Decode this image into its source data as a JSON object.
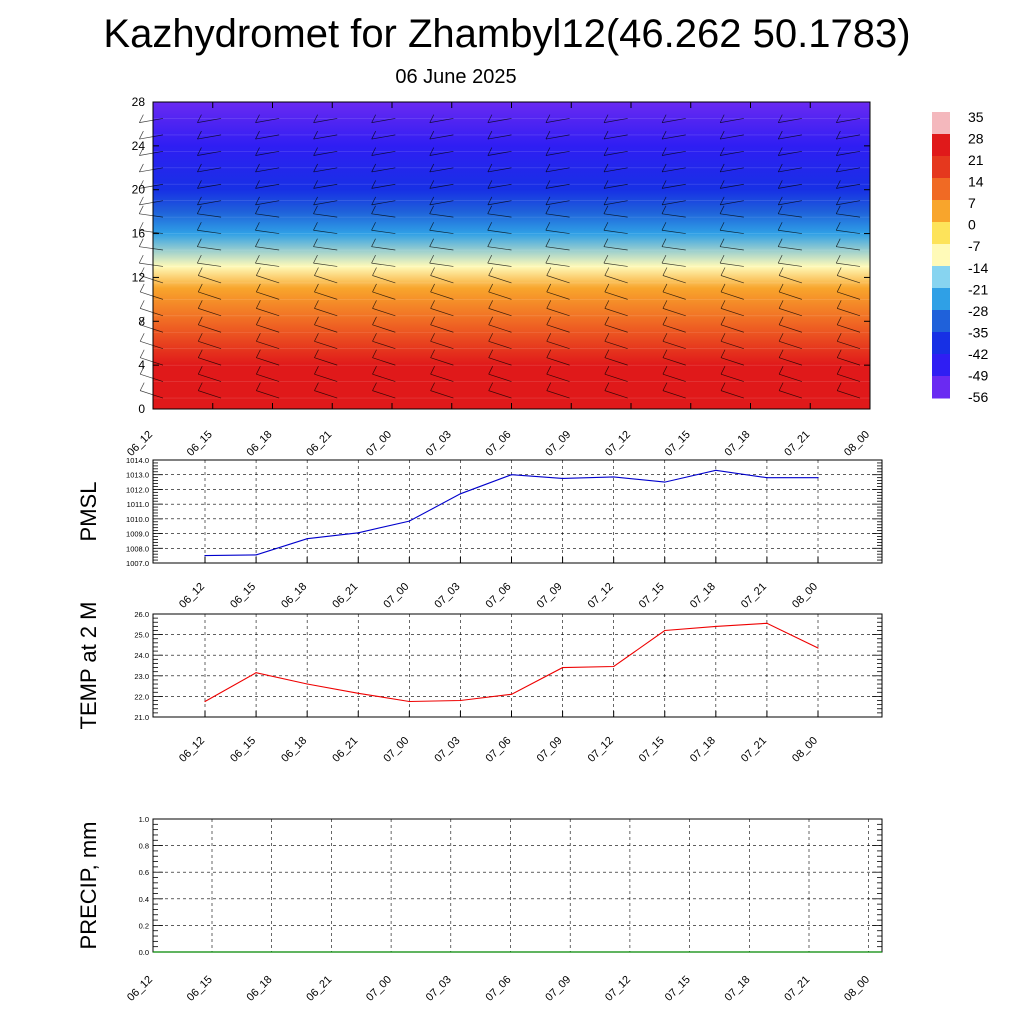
{
  "header": {
    "title": "Kazhydromet for Zhambyl12(46.262 50.1783)",
    "subtitle": "06 June 2025"
  },
  "chart_data": [
    {
      "type": "heatmap",
      "title": "",
      "ylim": [
        0,
        28
      ],
      "y_ticks": [
        "0",
        "4",
        "8",
        "12",
        "16",
        "20",
        "24",
        "28"
      ],
      "x_ticks": [
        "06_12",
        "06_15",
        "06_18",
        "06_21",
        "07_00",
        "07_03",
        "07_06",
        "07_09",
        "07_12",
        "07_15",
        "07_18",
        "07_21",
        "08_00"
      ],
      "colorbar": {
        "labels": [
          "35",
          "28",
          "21",
          "14",
          "7",
          "0",
          "-7",
          "-14",
          "-21",
          "-28",
          "-35",
          "-42",
          "-49",
          "-56"
        ],
        "colors": [
          "#f4b8bd",
          "#e0191a",
          "#e5381e",
          "#f06a24",
          "#f8a52c",
          "#fde35a",
          "#fffab8",
          "#87d4f0",
          "#2fa0e6",
          "#1f61da",
          "#1730e5",
          "#2f1ef3",
          "#6a2af2"
        ]
      },
      "temperature_by_level": [
        {
          "level": 0,
          "value": 30
        },
        {
          "level": 4,
          "value": 24
        },
        {
          "level": 8,
          "value": 14
        },
        {
          "level": 11,
          "value": 3
        },
        {
          "level": 13,
          "value": -10
        },
        {
          "level": 16,
          "value": -25
        },
        {
          "level": 18,
          "value": -40
        },
        {
          "level": 20,
          "value": -48
        },
        {
          "level": 24,
          "value": -56
        },
        {
          "level": 28,
          "value": -60
        }
      ]
    },
    {
      "type": "line",
      "ylabel": "PMSL",
      "ylim": [
        1007.0,
        1014.0
      ],
      "y_ticks": [
        "1007.0",
        "1008.0",
        "1009.0",
        "1010.0",
        "1011.0",
        "1012.0",
        "1013.0",
        "1014.0"
      ],
      "x": [
        "06_12",
        "06_15",
        "06_18",
        "06_21",
        "07_00",
        "07_03",
        "07_06",
        "07_09",
        "07_12",
        "07_15",
        "07_18",
        "07_21",
        "08_00"
      ],
      "values": [
        1007.5,
        1007.55,
        1008.65,
        1009.05,
        1009.85,
        1011.7,
        1013.0,
        1012.75,
        1012.85,
        1012.5,
        1013.3,
        1012.8,
        1012.8
      ],
      "color": "#0000cc"
    },
    {
      "type": "line",
      "ylabel": "TEMP at 2 M",
      "ylim": [
        21.0,
        26.0
      ],
      "y_ticks": [
        "21.0",
        "22.0",
        "23.0",
        "24.0",
        "25.0",
        "26.0"
      ],
      "x": [
        "06_12",
        "06_15",
        "06_18",
        "06_21",
        "07_00",
        "07_03",
        "07_06",
        "07_09",
        "07_12",
        "07_15",
        "07_18",
        "07_21",
        "08_00"
      ],
      "values": [
        21.75,
        23.15,
        22.6,
        22.15,
        21.75,
        21.8,
        22.1,
        23.4,
        23.45,
        25.2,
        25.4,
        25.55,
        24.35
      ],
      "color": "#ee0000"
    },
    {
      "type": "line",
      "ylabel": "PRECIP, mm",
      "ylim": [
        0.0,
        1.0
      ],
      "y_ticks": [
        "0.0",
        "0.2",
        "0.4",
        "0.6",
        "0.8",
        "1.0"
      ],
      "x": [
        "06_12",
        "06_15",
        "06_18",
        "06_21",
        "07_00",
        "07_03",
        "07_06",
        "07_09",
        "07_12",
        "07_15",
        "07_18",
        "07_21",
        "08_00"
      ],
      "values": [
        0,
        0,
        0,
        0,
        0,
        0,
        0,
        0,
        0,
        0,
        0,
        0,
        0
      ],
      "color": "#008800"
    }
  ]
}
